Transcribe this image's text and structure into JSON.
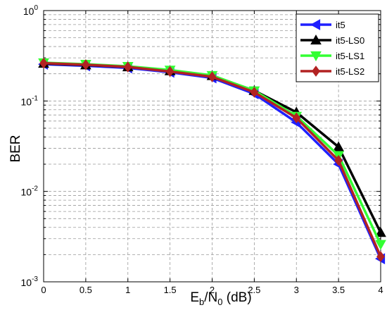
{
  "chart_data": {
    "type": "line",
    "title": "",
    "xlabel_base": "E",
    "xlabel_sub1": "b",
    "xlabel_mid": "/N",
    "xlabel_sub2": "0",
    "xlabel_tail": " (dB)",
    "ylabel": "BER",
    "xlim": [
      0,
      4
    ],
    "ylim": [
      0.001,
      1
    ],
    "yscale": "log",
    "grid": true,
    "legend_position": "top-right",
    "x_ticks": [
      "0",
      "0.5",
      "1",
      "1.5",
      "2",
      "2.5",
      "3",
      "3.5",
      "4"
    ],
    "y_ticks": [
      {
        "base": "10",
        "exp": "-3"
      },
      {
        "base": "10",
        "exp": "-2"
      },
      {
        "base": "10",
        "exp": "-1"
      },
      {
        "base": "10",
        "exp": "0"
      }
    ],
    "x": [
      0,
      0.5,
      1,
      1.5,
      2,
      2.5,
      3,
      3.5,
      4
    ],
    "series": [
      {
        "name": "it5",
        "color": "#1f1fff",
        "marker": "triangle-left",
        "values": [
          0.255,
          0.245,
          0.232,
          0.208,
          0.18,
          0.12,
          0.058,
          0.02,
          0.0018
        ]
      },
      {
        "name": "it5-LS0",
        "color": "#000000",
        "marker": "triangle-up",
        "values": [
          0.26,
          0.25,
          0.238,
          0.215,
          0.19,
          0.13,
          0.075,
          0.031,
          0.0035
        ]
      },
      {
        "name": "it5-LS1",
        "color": "#33ff33",
        "marker": "triangle-down",
        "values": [
          0.265,
          0.255,
          0.242,
          0.22,
          0.192,
          0.13,
          0.068,
          0.025,
          0.0026
        ]
      },
      {
        "name": "it5-LS2",
        "color": "#b22222",
        "marker": "diamond",
        "values": [
          0.262,
          0.252,
          0.238,
          0.212,
          0.185,
          0.125,
          0.065,
          0.022,
          0.0019
        ]
      }
    ]
  }
}
